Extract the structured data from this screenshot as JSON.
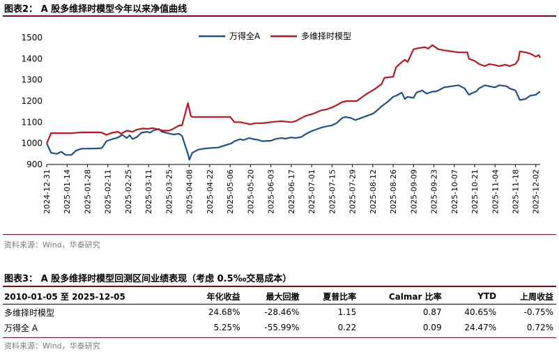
{
  "figure2": {
    "title": "图表2：  A 股多维择时模型今年以来净值曲线",
    "source": "资料来源：Wind，华泰研究"
  },
  "chart_data": {
    "type": "line",
    "title": "",
    "xlabel": "",
    "ylabel": "",
    "ylim": [
      900,
      1500
    ],
    "yticks": [
      900,
      1000,
      1100,
      1200,
      1300,
      1400,
      1500
    ],
    "x_tick_labels": [
      "2024-12-31",
      "2025-01-14",
      "2025-01-28",
      "2025-02-11",
      "2025-02-25",
      "2025-03-11",
      "2025-03-25",
      "2025-04-08",
      "2025-04-22",
      "2025-05-06",
      "2025-05-20",
      "2025-06-03",
      "2025-06-17",
      "2025-07-01",
      "2025-07-15",
      "2025-07-29",
      "2025-08-12",
      "2025-08-26",
      "2025-09-09",
      "2025-09-23",
      "2025-10-07",
      "2025-10-21",
      "2025-11-04",
      "2025-11-18",
      "2025-12-02"
    ],
    "x_end": "2025-12-05",
    "grid": false,
    "legend_position": "top",
    "series": [
      {
        "name": "万得全A",
        "color": "#1f4e8c",
        "points": [
          [
            "2024-12-31",
            1000
          ],
          [
            "2025-01-03",
            955
          ],
          [
            "2025-01-07",
            950
          ],
          [
            "2025-01-10",
            960
          ],
          [
            "2025-01-13",
            945
          ],
          [
            "2025-01-17",
            945
          ],
          [
            "2025-01-20",
            965
          ],
          [
            "2025-01-22",
            970
          ],
          [
            "2025-01-24",
            975
          ],
          [
            "2025-01-27",
            975
          ],
          [
            "2025-02-05",
            976
          ],
          [
            "2025-02-07",
            978
          ],
          [
            "2025-02-10",
            1010
          ],
          [
            "2025-02-14",
            1020
          ],
          [
            "2025-02-17",
            1025
          ],
          [
            "2025-02-19",
            1032
          ],
          [
            "2025-02-21",
            1040
          ],
          [
            "2025-02-24",
            1025
          ],
          [
            "2025-02-26",
            1038
          ],
          [
            "2025-02-28",
            1020
          ],
          [
            "2025-03-03",
            1030
          ],
          [
            "2025-03-06",
            1050
          ],
          [
            "2025-03-10",
            1055
          ],
          [
            "2025-03-12",
            1050
          ],
          [
            "2025-03-14",
            1060
          ],
          [
            "2025-03-18",
            1068
          ],
          [
            "2025-03-20",
            1055
          ],
          [
            "2025-03-24",
            1048
          ],
          [
            "2025-03-28",
            1042
          ],
          [
            "2025-04-01",
            1045
          ],
          [
            "2025-04-03",
            1035
          ],
          [
            "2025-04-07",
            950
          ],
          [
            "2025-04-08",
            922
          ],
          [
            "2025-04-10",
            955
          ],
          [
            "2025-04-14",
            970
          ],
          [
            "2025-04-18",
            975
          ],
          [
            "2025-04-23",
            978
          ],
          [
            "2025-04-28",
            980
          ],
          [
            "2025-04-30",
            985
          ],
          [
            "2025-05-07",
            1000
          ],
          [
            "2025-05-09",
            1010
          ],
          [
            "2025-05-13",
            1020
          ],
          [
            "2025-05-15",
            1015
          ],
          [
            "2025-05-19",
            1025
          ],
          [
            "2025-05-22",
            1020
          ],
          [
            "2025-05-26",
            1015
          ],
          [
            "2025-05-28",
            1010
          ],
          [
            "2025-06-03",
            1012
          ],
          [
            "2025-06-06",
            1020
          ],
          [
            "2025-06-10",
            1025
          ],
          [
            "2025-06-13",
            1022
          ],
          [
            "2025-06-17",
            1028
          ],
          [
            "2025-06-20",
            1025
          ],
          [
            "2025-06-24",
            1030
          ],
          [
            "2025-06-26",
            1040
          ],
          [
            "2025-06-30",
            1055
          ],
          [
            "2025-07-04",
            1065
          ],
          [
            "2025-07-08",
            1075
          ],
          [
            "2025-07-11",
            1080
          ],
          [
            "2025-07-15",
            1085
          ],
          [
            "2025-07-18",
            1095
          ],
          [
            "2025-07-22",
            1120
          ],
          [
            "2025-07-24",
            1125
          ],
          [
            "2025-07-28",
            1120
          ],
          [
            "2025-07-31",
            1110
          ],
          [
            "2025-08-04",
            1120
          ],
          [
            "2025-08-08",
            1130
          ],
          [
            "2025-08-12",
            1140
          ],
          [
            "2025-08-14",
            1150
          ],
          [
            "2025-08-18",
            1175
          ],
          [
            "2025-08-20",
            1185
          ],
          [
            "2025-08-22",
            1195
          ],
          [
            "2025-08-26",
            1220
          ],
          [
            "2025-08-28",
            1225
          ],
          [
            "2025-09-01",
            1240
          ],
          [
            "2025-09-03",
            1210
          ],
          [
            "2025-09-05",
            1220
          ],
          [
            "2025-09-09",
            1215
          ],
          [
            "2025-09-11",
            1240
          ],
          [
            "2025-09-15",
            1250
          ],
          [
            "2025-09-18",
            1235
          ],
          [
            "2025-09-22",
            1245
          ],
          [
            "2025-09-24",
            1245
          ],
          [
            "2025-09-26",
            1250
          ],
          [
            "2025-09-30",
            1265
          ],
          [
            "2025-10-10",
            1275
          ],
          [
            "2025-10-14",
            1260
          ],
          [
            "2025-10-17",
            1230
          ],
          [
            "2025-10-20",
            1240
          ],
          [
            "2025-10-22",
            1245
          ],
          [
            "2025-10-24",
            1260
          ],
          [
            "2025-10-28",
            1275
          ],
          [
            "2025-10-31",
            1270
          ],
          [
            "2025-11-04",
            1265
          ],
          [
            "2025-11-07",
            1275
          ],
          [
            "2025-11-12",
            1270
          ],
          [
            "2025-11-14",
            1260
          ],
          [
            "2025-11-18",
            1250
          ],
          [
            "2025-11-21",
            1205
          ],
          [
            "2025-11-25",
            1210
          ],
          [
            "2025-11-28",
            1225
          ],
          [
            "2025-12-02",
            1230
          ],
          [
            "2025-12-05",
            1245
          ]
        ]
      },
      {
        "name": "多维择时模型",
        "color": "#c0141e",
        "points": [
          [
            "2024-12-31",
            1000
          ],
          [
            "2025-01-03",
            1048
          ],
          [
            "2025-01-10",
            1048
          ],
          [
            "2025-01-17",
            1048
          ],
          [
            "2025-01-24",
            1052
          ],
          [
            "2025-02-05",
            1052
          ],
          [
            "2025-02-07",
            1050
          ],
          [
            "2025-02-10",
            1040
          ],
          [
            "2025-02-14",
            1050
          ],
          [
            "2025-02-18",
            1055
          ],
          [
            "2025-02-20",
            1045
          ],
          [
            "2025-02-24",
            1060
          ],
          [
            "2025-02-28",
            1055
          ],
          [
            "2025-03-03",
            1065
          ],
          [
            "2025-03-07",
            1070
          ],
          [
            "2025-03-10",
            1068
          ],
          [
            "2025-03-14",
            1072
          ],
          [
            "2025-03-18",
            1065
          ],
          [
            "2025-03-21",
            1060
          ],
          [
            "2025-03-25",
            1060
          ],
          [
            "2025-03-27",
            1065
          ],
          [
            "2025-04-01",
            1085
          ],
          [
            "2025-04-03",
            1085
          ],
          [
            "2025-04-07",
            1190
          ],
          [
            "2025-04-09",
            1130
          ],
          [
            "2025-04-10",
            1125
          ],
          [
            "2025-04-18",
            1125
          ],
          [
            "2025-05-06",
            1125
          ],
          [
            "2025-05-09",
            1100
          ],
          [
            "2025-05-13",
            1100
          ],
          [
            "2025-05-20",
            1090
          ],
          [
            "2025-05-23",
            1095
          ],
          [
            "2025-05-28",
            1095
          ],
          [
            "2025-06-03",
            1100
          ],
          [
            "2025-06-10",
            1105
          ],
          [
            "2025-06-17",
            1100
          ],
          [
            "2025-06-20",
            1105
          ],
          [
            "2025-06-24",
            1120
          ],
          [
            "2025-06-27",
            1130
          ],
          [
            "2025-07-02",
            1140
          ],
          [
            "2025-07-07",
            1155
          ],
          [
            "2025-07-11",
            1160
          ],
          [
            "2025-07-15",
            1170
          ],
          [
            "2025-07-18",
            1180
          ],
          [
            "2025-07-22",
            1195
          ],
          [
            "2025-07-25",
            1200
          ],
          [
            "2025-08-01",
            1200
          ],
          [
            "2025-08-05",
            1220
          ],
          [
            "2025-08-08",
            1235
          ],
          [
            "2025-08-13",
            1255
          ],
          [
            "2025-08-18",
            1280
          ],
          [
            "2025-08-20",
            1310
          ],
          [
            "2025-08-26",
            1315
          ],
          [
            "2025-08-28",
            1360
          ],
          [
            "2025-09-01",
            1385
          ],
          [
            "2025-09-03",
            1395
          ],
          [
            "2025-09-05",
            1385
          ],
          [
            "2025-09-09",
            1445
          ],
          [
            "2025-09-12",
            1450
          ],
          [
            "2025-09-17",
            1455
          ],
          [
            "2025-09-19",
            1448
          ],
          [
            "2025-09-22",
            1465
          ],
          [
            "2025-09-24",
            1455
          ],
          [
            "2025-09-26",
            1445
          ],
          [
            "2025-09-30",
            1440
          ],
          [
            "2025-10-10",
            1430
          ],
          [
            "2025-10-16",
            1430
          ],
          [
            "2025-10-17",
            1400
          ],
          [
            "2025-10-21",
            1390
          ],
          [
            "2025-10-24",
            1375
          ],
          [
            "2025-10-28",
            1365
          ],
          [
            "2025-10-31",
            1375
          ],
          [
            "2025-11-04",
            1370
          ],
          [
            "2025-11-07",
            1365
          ],
          [
            "2025-11-11",
            1372
          ],
          [
            "2025-11-14",
            1365
          ],
          [
            "2025-11-18",
            1375
          ],
          [
            "2025-11-20",
            1395
          ],
          [
            "2025-11-21",
            1435
          ],
          [
            "2025-11-25",
            1430
          ],
          [
            "2025-11-28",
            1425
          ],
          [
            "2025-12-02",
            1410
          ],
          [
            "2025-12-04",
            1418
          ],
          [
            "2025-12-05",
            1405
          ]
        ]
      }
    ]
  },
  "figure3": {
    "title": "图表3：  A 股多维择时模型回测区间业绩表现（考虑 0.5‰交易成本）",
    "source": "资料来源：Wind，华泰研究",
    "headers": [
      "2010-01-05 至 2025-12-05",
      "年化收益",
      "最大回撤",
      "夏普比率",
      "Calmar 比率",
      "YTD",
      "上周收益"
    ],
    "rows": [
      [
        "多维择时模型",
        "24.68%",
        "-28.46%",
        "1.15",
        "0.87",
        "40.65%",
        "-0.75%"
      ],
      [
        "万得全 A",
        "5.25%",
        "-55.99%",
        "0.22",
        "0.09",
        "24.47%",
        "0.72%"
      ]
    ]
  }
}
